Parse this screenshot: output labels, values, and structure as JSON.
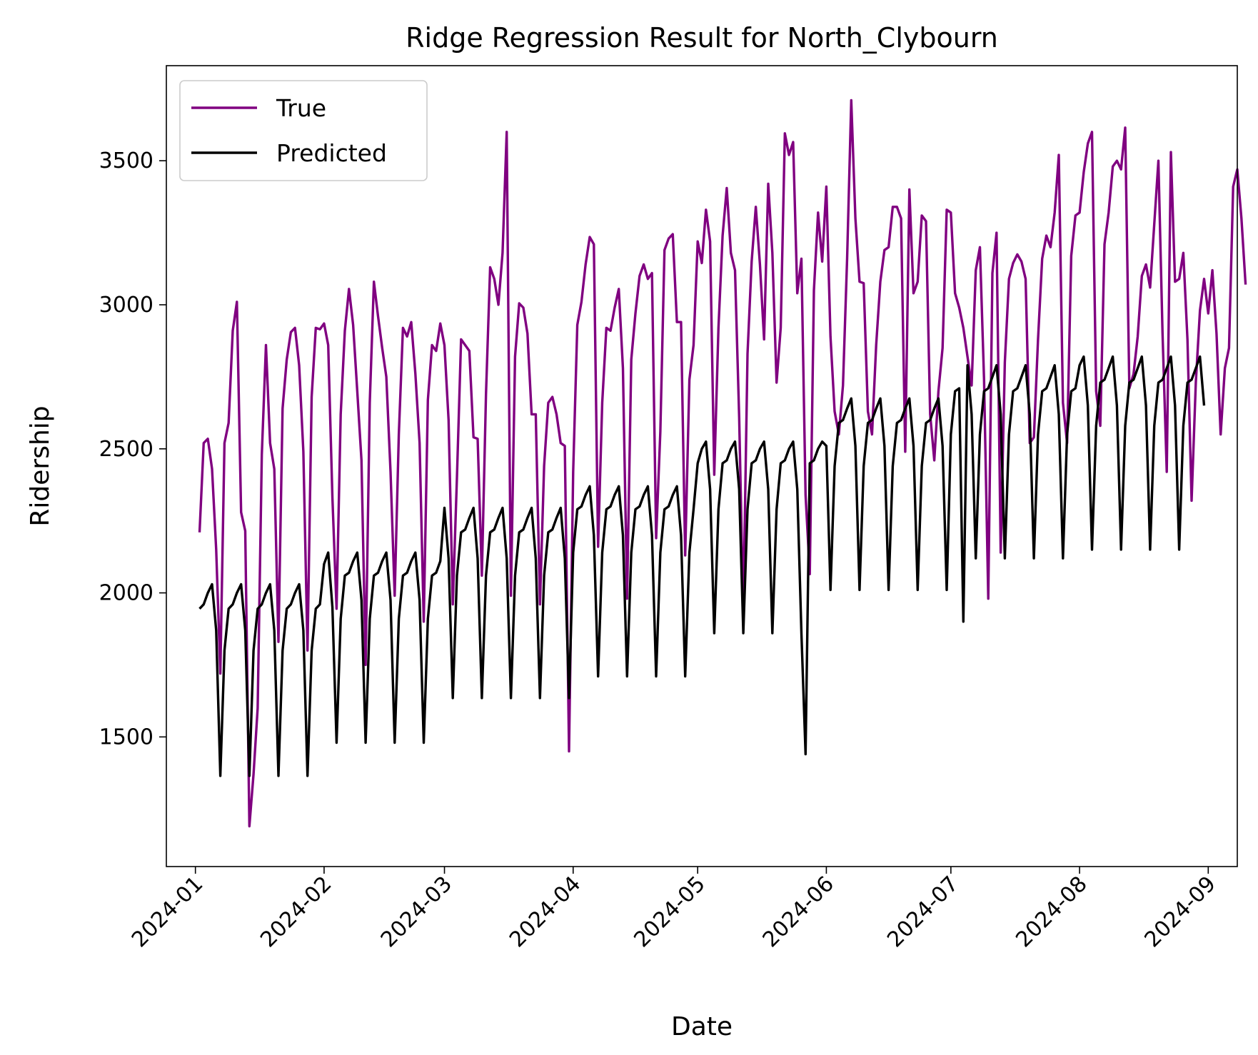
{
  "chart_data": {
    "type": "line",
    "title": "Ridge Regression Result for North_Clybourn",
    "xlabel": "Date",
    "ylabel": "Ridership",
    "x_ticks": [
      "2024-01",
      "2024-02",
      "2024-03",
      "2024-04",
      "2024-05",
      "2024-06",
      "2024-07",
      "2024-08",
      "2024-09"
    ],
    "y_ticks": [
      1500,
      2000,
      2500,
      3000,
      3500
    ],
    "xlim": [
      "2023-12-25",
      "2024-09-08"
    ],
    "ylim": [
      1050,
      3830
    ],
    "grid": false,
    "legend_position": "top-left",
    "x_start": "2024-01-02",
    "series": [
      {
        "name": "True",
        "color": "#800080",
        "values": [
          2210,
          2520,
          2535,
          2430,
          2150,
          1720,
          2520,
          2590,
          2910,
          3010,
          2280,
          2215,
          1190,
          1370,
          1600,
          2480,
          2860,
          2520,
          2430,
          1830,
          2640,
          2810,
          2905,
          2920,
          2790,
          2490,
          1800,
          2680,
          2920,
          2915,
          2935,
          2860,
          2330,
          1945,
          2620,
          2910,
          3055,
          2930,
          2700,
          2460,
          1750,
          2660,
          3080,
          2960,
          2850,
          2750,
          2420,
          1990,
          2550,
          2920,
          2890,
          2940,
          2760,
          2520,
          1900,
          2670,
          2860,
          2840,
          2935,
          2860,
          2600,
          1960,
          2400,
          2880,
          2860,
          2840,
          2540,
          2535,
          2060,
          2690,
          3130,
          3090,
          3000,
          3180,
          3600,
          1990,
          2820,
          3005,
          2990,
          2900,
          2620,
          2620,
          1960,
          2440,
          2660,
          2680,
          2620,
          2520,
          2510,
          1450,
          2420,
          2930,
          3010,
          3140,
          3235,
          3210,
          2160,
          2660,
          2920,
          2910,
          2990,
          3055,
          2780,
          1980,
          2810,
          2970,
          3100,
          3140,
          3090,
          3110,
          2190,
          2560,
          3190,
          3230,
          3245,
          2940,
          2940,
          2130,
          2740,
          2860,
          3220,
          3145,
          3330,
          3220,
          2410,
          2920,
          3240,
          3405,
          3180,
          3120,
          2610,
          1930,
          2830,
          3150,
          3340,
          3140,
          2880,
          3420,
          3180,
          2730,
          2920,
          3595,
          3520,
          3565,
          3040,
          3160,
          2340,
          2065,
          3050,
          3320,
          3150,
          3410,
          2890,
          2630,
          2550,
          2720,
          3160,
          3710,
          3300,
          3080,
          3075,
          2630,
          2550,
          2860,
          3080,
          3190,
          3200,
          3340,
          3340,
          3300,
          2490,
          3400,
          3040,
          3080,
          3310,
          3290,
          2620,
          2460,
          2700,
          2850,
          3330,
          3320,
          3040,
          2990,
          2920,
          2820,
          2720,
          3120,
          3200,
          2740,
          1980,
          3110,
          3250,
          2140,
          2800,
          3090,
          3145,
          3175,
          3150,
          3090,
          2520,
          2540,
          2880,
          3160,
          3240,
          3200,
          3320,
          3520,
          2660,
          2520,
          3170,
          3310,
          3320,
          3460,
          3560,
          3600,
          2700,
          2580,
          3210,
          3320,
          3480,
          3500,
          3470,
          3615,
          2710,
          2760,
          2890,
          3100,
          3140,
          3060,
          3280,
          3500,
          2900,
          2420,
          3530,
          3080,
          3090,
          3180,
          2880,
          2320,
          2730,
          2980,
          3090,
          2970,
          3120,
          2900,
          2550,
          2780,
          2850,
          3410,
          3470,
          3300,
          3070
        ]
      },
      {
        "name": "Predicted",
        "color": "#000000",
        "values": [
          1945,
          1960,
          2000,
          2030,
          1870,
          1365,
          1800,
          1945,
          1960,
          2000,
          2030,
          1870,
          1365,
          1800,
          1945,
          1960,
          2000,
          2030,
          1870,
          1365,
          1800,
          1945,
          1960,
          2000,
          2030,
          1870,
          1365,
          1800,
          1945,
          1960,
          2100,
          2140,
          1950,
          1480,
          1910,
          2060,
          2070,
          2110,
          2140,
          1975,
          1480,
          1910,
          2060,
          2070,
          2110,
          2140,
          1975,
          1480,
          1910,
          2060,
          2070,
          2110,
          2140,
          1975,
          1480,
          1910,
          2060,
          2070,
          2110,
          2295,
          2120,
          1635,
          2060,
          2210,
          2220,
          2260,
          2295,
          2120,
          1635,
          2060,
          2210,
          2220,
          2260,
          2295,
          2120,
          1635,
          2060,
          2210,
          2220,
          2260,
          2295,
          2120,
          1635,
          2060,
          2210,
          2220,
          2260,
          2295,
          2120,
          1635,
          2140,
          2290,
          2300,
          2340,
          2370,
          2200,
          1710,
          2140,
          2290,
          2300,
          2340,
          2370,
          2200,
          1710,
          2140,
          2290,
          2300,
          2340,
          2370,
          2200,
          1710,
          2140,
          2290,
          2300,
          2340,
          2370,
          2200,
          1710,
          2140,
          2290,
          2450,
          2500,
          2525,
          2360,
          1860,
          2290,
          2450,
          2460,
          2500,
          2525,
          2360,
          1860,
          2290,
          2450,
          2460,
          2500,
          2525,
          2360,
          1860,
          2290,
          2450,
          2460,
          2500,
          2525,
          2360,
          1860,
          1440,
          2450,
          2460,
          2500,
          2525,
          2510,
          2010,
          2440,
          2590,
          2600,
          2640,
          2675,
          2510,
          2010,
          2440,
          2590,
          2600,
          2640,
          2675,
          2510,
          2010,
          2440,
          2590,
          2600,
          2640,
          2675,
          2510,
          2010,
          2440,
          2590,
          2600,
          2640,
          2675,
          2510,
          2010,
          2550,
          2700,
          2710,
          1900,
          2790,
          2620,
          2120,
          2550,
          2700,
          2710,
          2750,
          2790,
          2620,
          2120,
          2550,
          2700,
          2710,
          2750,
          2790,
          2620,
          2120,
          2550,
          2700,
          2710,
          2750,
          2790,
          2620,
          2120,
          2550,
          2700,
          2710,
          2790,
          2820,
          2650,
          2150,
          2580,
          2730,
          2740,
          2780,
          2820,
          2650,
          2150,
          2580,
          2730,
          2740,
          2780,
          2820,
          2650,
          2150,
          2580,
          2730,
          2740,
          2780,
          2820,
          2650,
          2150,
          2580,
          2730,
          2740,
          2780,
          2820,
          2650
        ]
      }
    ]
  }
}
